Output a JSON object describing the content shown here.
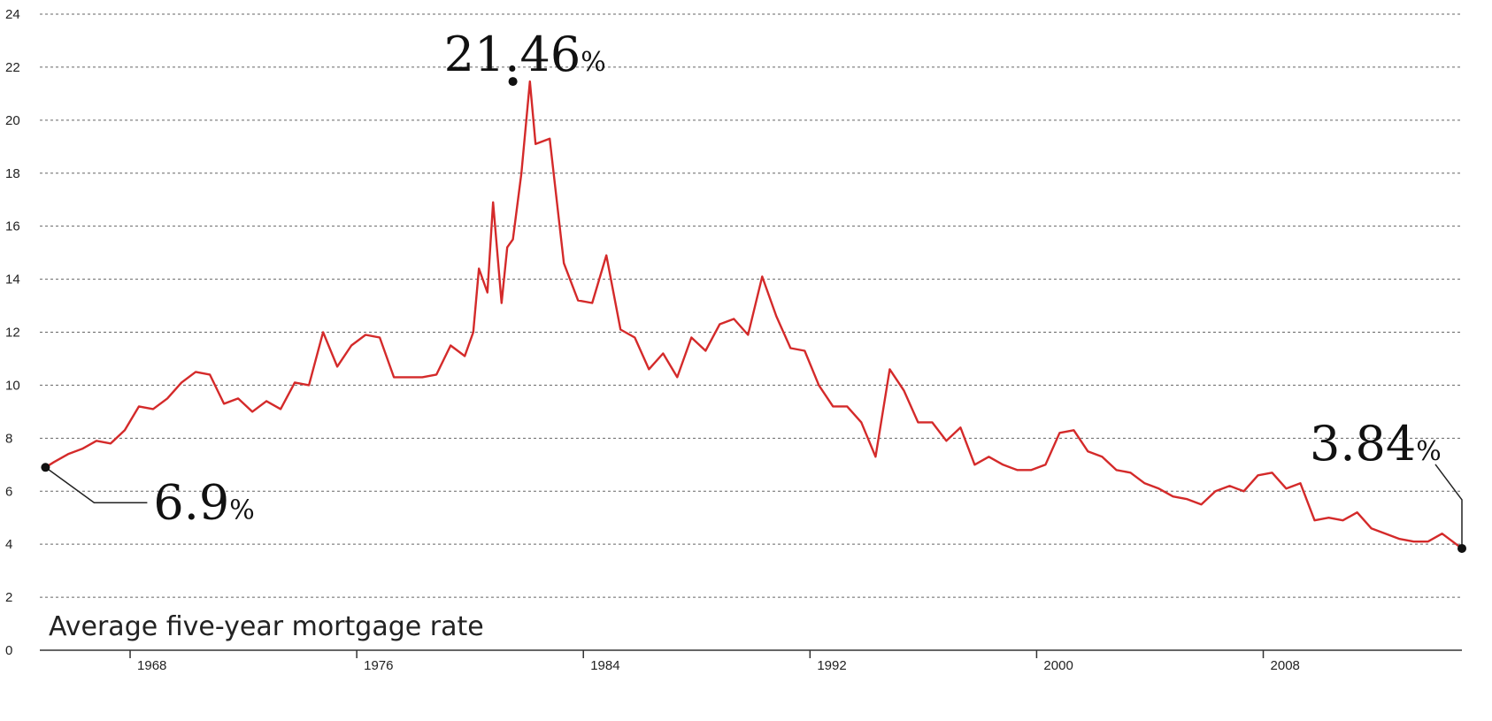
{
  "chart_data": {
    "type": "line",
    "title": "Average five-year mortgage rate",
    "xlabel": "",
    "ylabel": "",
    "ylim": [
      0,
      24
    ],
    "yticks": [
      0,
      2,
      4,
      6,
      8,
      10,
      12,
      14,
      16,
      18,
      20,
      22,
      24
    ],
    "xlim": [
      1964.5,
      2014.7
    ],
    "xticks": [
      1968,
      1976,
      1984,
      1992,
      2000,
      2008
    ],
    "grid": true,
    "series_color": "#d42a2a",
    "annotations": [
      {
        "value": "6.9",
        "unit": "%",
        "x": 1964.7,
        "y": 6.9
      },
      {
        "value": "21.46",
        "unit": "%",
        "x": 1981.2,
        "y": 21.46
      },
      {
        "value": "3.84",
        "unit": "%",
        "x": 2014.7,
        "y": 3.84
      }
    ],
    "series": [
      {
        "x": [
          1964.7,
          1965,
          1965.5,
          1966,
          1966.5,
          1967,
          1967.5,
          1968,
          1968.5,
          1969,
          1969.5,
          1970,
          1970.5,
          1971,
          1971.5,
          1972,
          1972.5,
          1973,
          1973.5,
          1974,
          1974.5,
          1975,
          1975.5,
          1976,
          1976.5,
          1977,
          1977.5,
          1978,
          1978.5,
          1979,
          1979.5,
          1979.8,
          1980,
          1980.3,
          1980.5,
          1980.8,
          1981,
          1981.2,
          1981.5,
          1981.8,
          1982,
          1982.5,
          1983,
          1983.5,
          1984,
          1984.5,
          1985,
          1985.5,
          1986,
          1986.5,
          1987,
          1987.5,
          1988,
          1988.5,
          1989,
          1989.5,
          1990,
          1990.5,
          1991,
          1991.5,
          1992,
          1992.5,
          1993,
          1993.5,
          1994,
          1994.5,
          1995,
          1995.5,
          1996,
          1996.5,
          1997,
          1997.5,
          1998,
          1998.5,
          1999,
          1999.5,
          2000,
          2000.5,
          2001,
          2001.5,
          2002,
          2002.5,
          2003,
          2003.5,
          2004,
          2004.5,
          2005,
          2005.5,
          2006,
          2006.5,
          2007,
          2007.5,
          2008,
          2008.5,
          2009,
          2009.5,
          2010,
          2010.5,
          2011,
          2011.5,
          2012,
          2012.5,
          2013,
          2013.5,
          2014,
          2014.5,
          2014.7
        ],
        "y": [
          6.9,
          7.1,
          7.4,
          7.6,
          7.9,
          7.8,
          8.3,
          9.2,
          9.1,
          9.5,
          10.1,
          10.5,
          10.4,
          9.3,
          9.5,
          9.0,
          9.4,
          9.1,
          10.1,
          10.0,
          12.0,
          10.7,
          11.5,
          11.9,
          11.8,
          10.3,
          10.3,
          10.3,
          10.4,
          11.5,
          11.1,
          12.0,
          14.4,
          13.5,
          16.9,
          13.1,
          15.2,
          15.5,
          18.0,
          21.46,
          19.1,
          19.3,
          14.6,
          13.2,
          13.1,
          14.9,
          12.1,
          11.8,
          10.6,
          11.2,
          10.3,
          11.8,
          11.3,
          12.3,
          12.5,
          11.9,
          14.1,
          12.6,
          11.4,
          11.3,
          10.0,
          9.2,
          9.2,
          8.6,
          7.3,
          10.6,
          9.8,
          8.6,
          8.6,
          7.9,
          8.4,
          7.0,
          7.3,
          7.0,
          6.8,
          6.8,
          7.0,
          8.2,
          8.3,
          7.5,
          7.3,
          6.8,
          6.7,
          6.3,
          6.1,
          5.8,
          5.7,
          5.5,
          6.0,
          6.2,
          6.0,
          6.6,
          6.7,
          6.1,
          6.3,
          4.9,
          5.0,
          4.9,
          5.2,
          4.6,
          4.4,
          4.2,
          4.1,
          4.1,
          4.4,
          4.0,
          3.84
        ]
      }
    ]
  }
}
